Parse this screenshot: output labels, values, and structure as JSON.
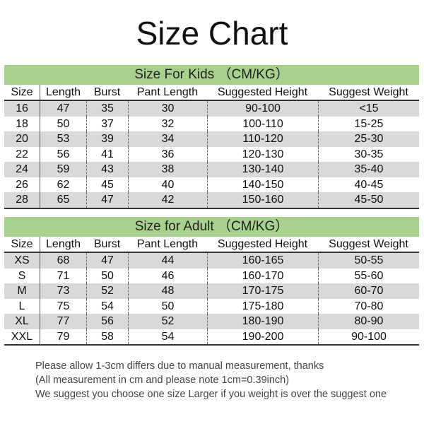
{
  "title": "Size Chart",
  "columns": [
    "Size",
    "Length",
    "Burst",
    "Pant Length",
    "Suggested Height",
    "Suggest Weight"
  ],
  "colors": {
    "band": "#a9d18e",
    "stripe": "#d9d9d9"
  },
  "kids": {
    "heading": "Size For Kids （CM/KG）",
    "rows": [
      [
        "16",
        "47",
        "35",
        "30",
        "90-100",
        "<15"
      ],
      [
        "18",
        "50",
        "37",
        "32",
        "100-110",
        "15-25"
      ],
      [
        "20",
        "53",
        "39",
        "34",
        "110-120",
        "25-30"
      ],
      [
        "22",
        "56",
        "41",
        "36",
        "120-130",
        "30-35"
      ],
      [
        "24",
        "59",
        "43",
        "38",
        "130-140",
        "35-40"
      ],
      [
        "26",
        "62",
        "45",
        "40",
        "140-150",
        "40-45"
      ],
      [
        "28",
        "65",
        "47",
        "42",
        "150-160",
        "45-50"
      ]
    ]
  },
  "adult": {
    "heading": "Size for Adult （CM/KG）",
    "rows": [
      [
        "XS",
        "68",
        "47",
        "44",
        "160-165",
        "50-55"
      ],
      [
        "S",
        "71",
        "50",
        "46",
        "160-170",
        "55-60"
      ],
      [
        "M",
        "73",
        "52",
        "48",
        "170-175",
        "60-70"
      ],
      [
        "L",
        "75",
        "54",
        "50",
        "175-180",
        "70-80"
      ],
      [
        "XL",
        "77",
        "56",
        "52",
        "180-190",
        "80-90"
      ],
      [
        "XXL",
        "79",
        "58",
        "54",
        "190-200",
        "90-100"
      ]
    ]
  },
  "notes": [
    "Please allow 1-3cm differs due to manual measurement, thanks",
    "(All measurement in cm and please note 1cm=0.39inch)",
    "We suggest you choose one size Larger if you weight is over the suggest one"
  ]
}
